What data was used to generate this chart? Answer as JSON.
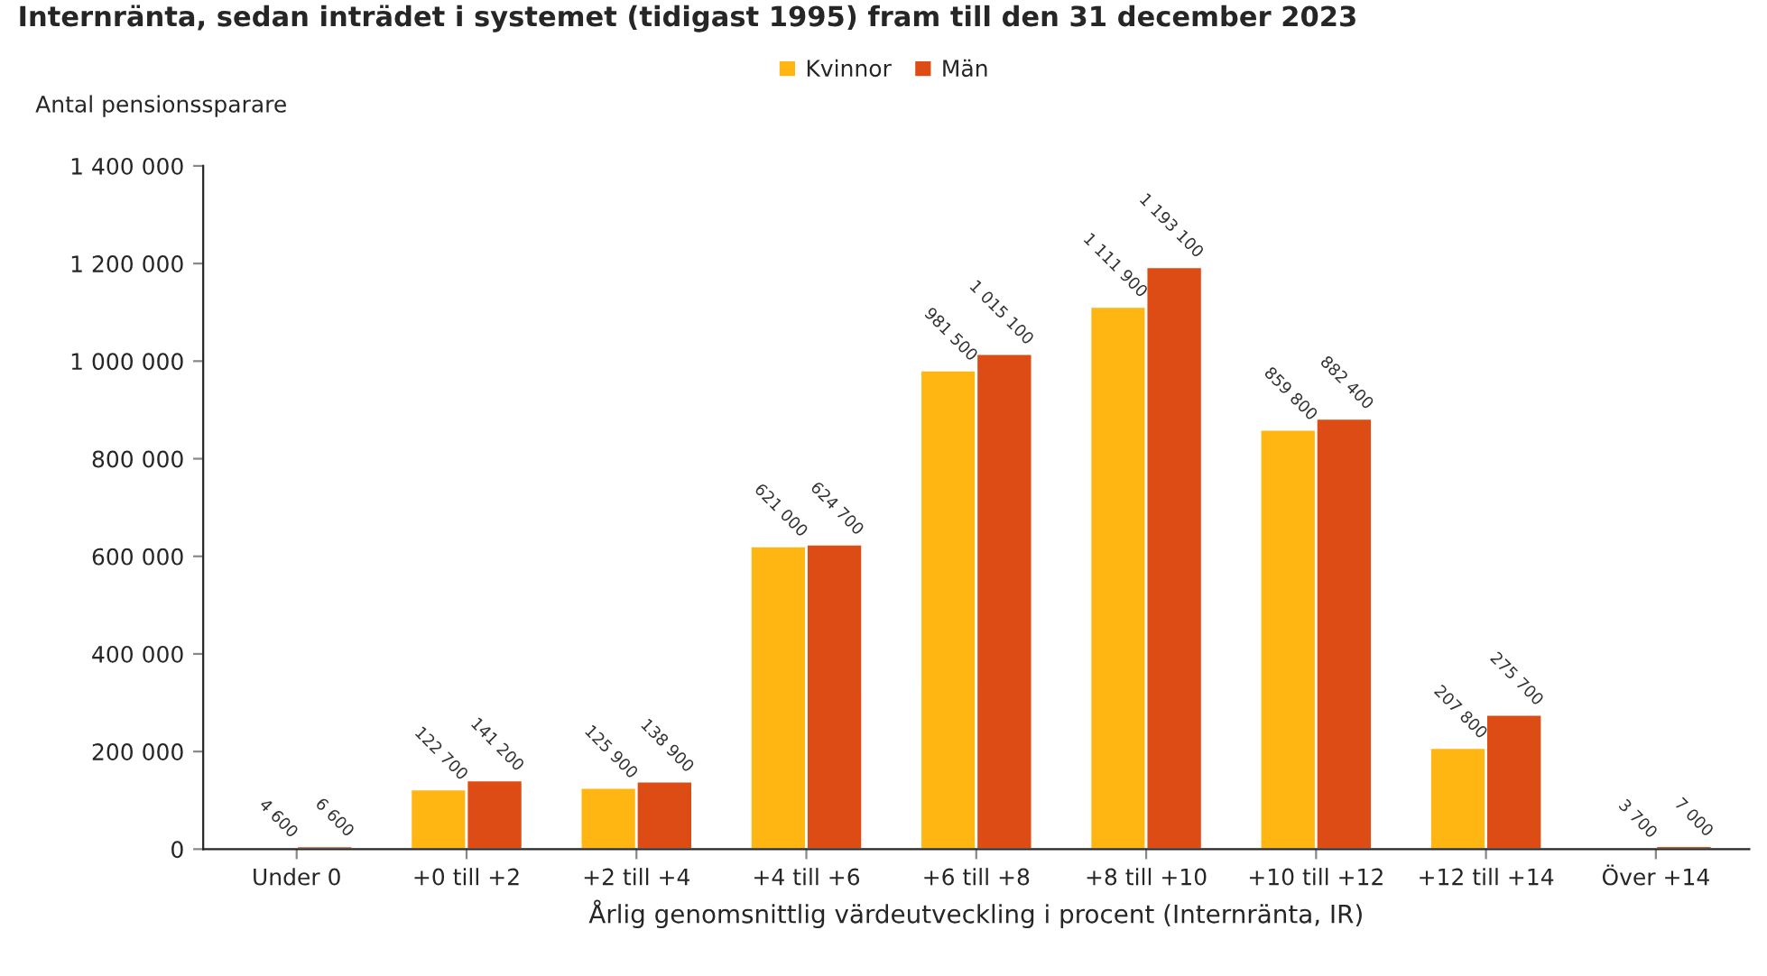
{
  "chart_data": {
    "type": "bar",
    "title": "Internränta, sedan inträdet i systemet (tidigast 1995) fram till den 31 december 2023",
    "xlabel": "Årlig genomsnittlig värdeutveckling i procent (Internränta, IR)",
    "ylabel": "Antal pensionssparare",
    "categories": [
      "Under 0",
      "+0 till +2",
      "+2 till +4",
      "+4 till +6",
      "+6 till +8",
      "+8 till +10",
      "+10 till +12",
      "+12 till +14",
      "Över +14"
    ],
    "series": [
      {
        "name": "Kvinnor",
        "color": "#ffb612",
        "values": [
          4600,
          122700,
          125900,
          621000,
          981500,
          1111900,
          859800,
          207800,
          3700
        ],
        "value_labels": [
          "4 600",
          "122 700",
          "125 900",
          "621 000",
          "981 500",
          "1 111 900",
          "859 800",
          "207 800",
          "3 700"
        ]
      },
      {
        "name": "Män",
        "color": "#dc4c14",
        "values": [
          6600,
          141200,
          138900,
          624700,
          1015100,
          1193100,
          882400,
          275700,
          7000
        ],
        "value_labels": [
          "6 600",
          "141 200",
          "138 900",
          "624 700",
          "1 015 100",
          "1 193 100",
          "882 400",
          "275 700",
          "7 000"
        ]
      }
    ],
    "ylim": [
      0,
      1400000
    ],
    "yticks": [
      {
        "value": 0,
        "label": "0"
      },
      {
        "value": 200000,
        "label": "200 000"
      },
      {
        "value": 400000,
        "label": "400 000"
      },
      {
        "value": 600000,
        "label": "600 000"
      },
      {
        "value": 800000,
        "label": "800 000"
      },
      {
        "value": 1000000,
        "label": "1 000 000"
      },
      {
        "value": 1200000,
        "label": "1 200 000"
      },
      {
        "value": 1400000,
        "label": "1 400 000"
      }
    ],
    "legend": "top",
    "grid": false
  }
}
